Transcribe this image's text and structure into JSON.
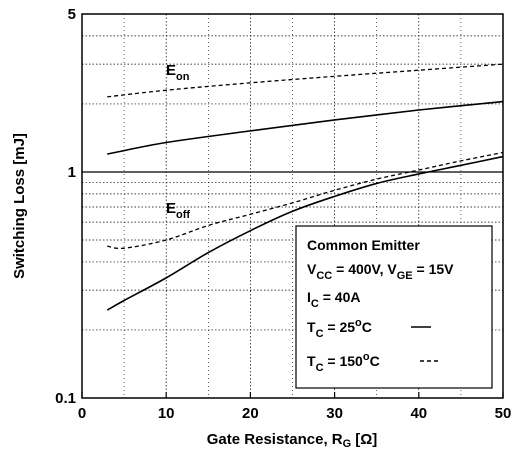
{
  "chart_data": {
    "type": "line",
    "xlabel": {
      "text": "Gate Resistance, R",
      "sub": "G",
      "unit": "[Ω]"
    },
    "ylabel": "Switching Loss [mJ]",
    "xlim": [
      0,
      50
    ],
    "ylim": [
      0.1,
      5
    ],
    "yscale": "log",
    "x_ticks": [
      "0",
      "10",
      "20",
      "30",
      "40",
      "50"
    ],
    "y_ticks": [
      "0.1",
      "1",
      "5"
    ],
    "grid": "dotted (on)",
    "series": [
      {
        "label": {
          "main": "E",
          "sub": "on"
        },
        "style": "dashed",
        "tc": "150",
        "x": [
          3,
          10,
          20,
          30,
          40,
          50
        ],
        "y": [
          2.15,
          2.3,
          2.48,
          2.65,
          2.82,
          3.0
        ]
      },
      {
        "label": {
          "main": "E",
          "sub": "on"
        },
        "style": "solid",
        "tc": "25",
        "x": [
          3,
          10,
          20,
          30,
          40,
          50
        ],
        "y": [
          1.2,
          1.35,
          1.52,
          1.7,
          1.88,
          2.05
        ]
      },
      {
        "label": {
          "main": "E",
          "sub": "off"
        },
        "style": "dashed",
        "tc": "150",
        "x": [
          3,
          5,
          10,
          15,
          20,
          25,
          30,
          35,
          40,
          45,
          50
        ],
        "y": [
          0.47,
          0.46,
          0.5,
          0.58,
          0.65,
          0.73,
          0.83,
          0.93,
          1.02,
          1.12,
          1.22
        ]
      },
      {
        "label": {
          "main": "E",
          "sub": "off"
        },
        "style": "solid",
        "tc": "25",
        "x": [
          3,
          5,
          10,
          15,
          20,
          25,
          30,
          35,
          40,
          45,
          50
        ],
        "y": [
          0.245,
          0.27,
          0.34,
          0.44,
          0.55,
          0.67,
          0.78,
          0.89,
          0.98,
          1.07,
          1.17
        ]
      }
    ],
    "legend": {
      "placement": "bottom-right",
      "lines": [
        {
          "parts": [
            {
              "t": "Common Emitter"
            }
          ]
        },
        {
          "parts": [
            {
              "t": "V"
            },
            {
              "t": "CC",
              "sub": true
            },
            {
              "t": " = 400V, V"
            },
            {
              "t": "GE",
              "sub": true
            },
            {
              "t": " = 15V"
            }
          ]
        },
        {
          "parts": [
            {
              "t": "I"
            },
            {
              "t": "C",
              "sub": true
            },
            {
              "t": " = 40A"
            }
          ]
        },
        {
          "parts": [
            {
              "t": "T"
            },
            {
              "t": "C",
              "sub": true
            },
            {
              "t": " = 25"
            },
            {
              "t": "o",
              "sup": true
            },
            {
              "t": "C"
            }
          ],
          "sample": "solid"
        },
        {
          "parts": [
            {
              "t": "T"
            },
            {
              "t": "C",
              "sub": true
            },
            {
              "t": " = 150"
            },
            {
              "t": "o",
              "sup": true
            },
            {
              "t": "C"
            }
          ],
          "sample": "dashed"
        }
      ]
    }
  }
}
